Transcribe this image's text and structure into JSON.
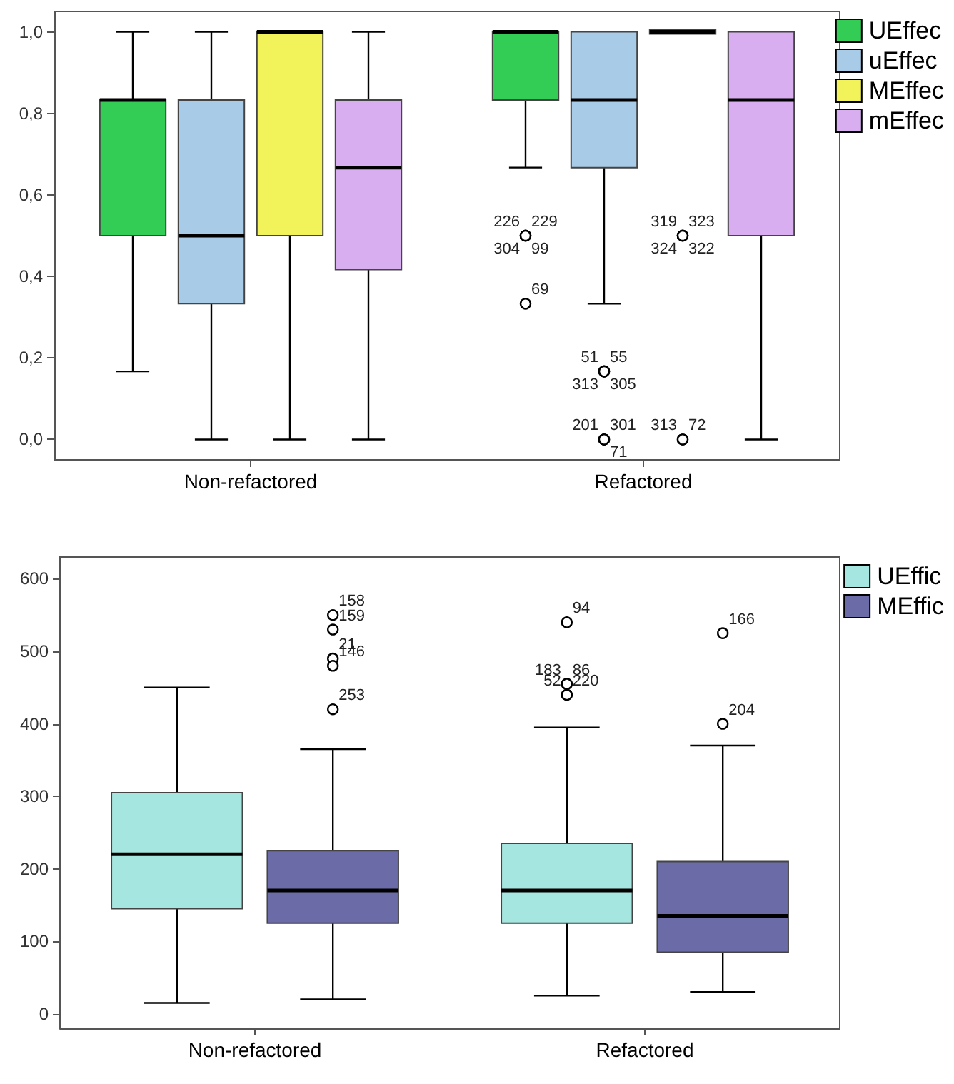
{
  "chart_data": [
    {
      "type": "box",
      "categories": [
        "Non-refactored",
        "Refactored"
      ],
      "ylim": [
        -0.05,
        1.05
      ],
      "yticks": [
        {
          "value": 0,
          "label": "0,0"
        },
        {
          "value": 0.2,
          "label": "0,2"
        },
        {
          "value": 0.4,
          "label": "0,4"
        },
        {
          "value": 0.6,
          "label": "0,6"
        },
        {
          "value": 0.8,
          "label": "0,8"
        },
        {
          "value": 1,
          "label": "1,0"
        }
      ],
      "legend": "right",
      "marker": "circle",
      "grid": false,
      "series": [
        {
          "name": "UEffec",
          "color": "#33cc55",
          "boxes": [
            {
              "low": 0.167,
              "q1": 0.5,
              "median": 0.833,
              "q3": 0.833,
              "high": 1
            },
            {
              "low": 0.667,
              "q1": 0.833,
              "median": 1,
              "q3": 1,
              "high": 1,
              "outliers": [
                0.5,
                0.5,
                0.5,
                0.5,
                0.333
              ]
            }
          ]
        },
        {
          "name": "uEffec",
          "color": "#a8cce8",
          "boxes": [
            {
              "low": 0,
              "q1": 0.333,
              "median": 0.5,
              "q3": 0.833,
              "high": 1
            },
            {
              "low": 0.333,
              "q1": 0.667,
              "median": 0.833,
              "q3": 1,
              "high": 1,
              "outliers": [
                0.167,
                0.167,
                0.167,
                0.167,
                0,
                0,
                0
              ]
            }
          ]
        },
        {
          "name": "MEffec",
          "color": "#f2f25a",
          "boxes": [
            {
              "low": 0,
              "q1": 0.5,
              "median": 1,
              "q3": 1,
              "high": 1
            },
            {
              "low": 1,
              "q1": 1,
              "median": 1,
              "q3": 1,
              "high": 1,
              "outliers": [
                0.5,
                0.5,
                0.5,
                0.5,
                0,
                0
              ]
            }
          ]
        },
        {
          "name": "mEffec",
          "color": "#d9aef0",
          "boxes": [
            {
              "low": 0,
              "q1": 0.417,
              "median": 0.667,
              "q3": 0.833,
              "high": 1
            },
            {
              "low": 0,
              "q1": 0.5,
              "median": 0.833,
              "q3": 1,
              "high": 1
            }
          ]
        }
      ],
      "annotations": [
        "226",
        "229",
        "304",
        "99",
        "69",
        "51",
        "55",
        "313",
        "305",
        "201",
        "301",
        "71",
        "319",
        "323",
        "324",
        "322",
        "313",
        "72"
      ]
    },
    {
      "type": "box",
      "categories": [
        "Non-refactored",
        "Refactored"
      ],
      "ylim": [
        -20,
        630
      ],
      "yticks": [
        0,
        100,
        200,
        300,
        400,
        500,
        600
      ],
      "legend": "right",
      "marker": "circle",
      "grid": false,
      "series": [
        {
          "name": "UEffic",
          "color": "#a6e6e0",
          "boxes": [
            {
              "low": 15,
              "q1": 145,
              "median": 220,
              "q3": 305,
              "high": 450
            },
            {
              "low": 25,
              "q1": 125,
              "median": 170,
              "q3": 235,
              "high": 395,
              "outliers": [
                540,
                455,
                455,
                440,
                440
              ]
            }
          ]
        },
        {
          "name": "MEffic",
          "color": "#6b6ba8",
          "boxes": [
            {
              "low": 20,
              "q1": 125,
              "median": 170,
              "q3": 225,
              "high": 365,
              "outliers": [
                550,
                530,
                490,
                480,
                420
              ]
            },
            {
              "low": 30,
              "q1": 85,
              "median": 135,
              "q3": 210,
              "high": 370,
              "outliers": [
                525,
                400
              ]
            }
          ]
        }
      ],
      "annotations": [
        "94",
        "183",
        "86",
        "52",
        "220",
        "158",
        "159",
        "21",
        "146",
        "253",
        "166",
        "204"
      ]
    }
  ]
}
